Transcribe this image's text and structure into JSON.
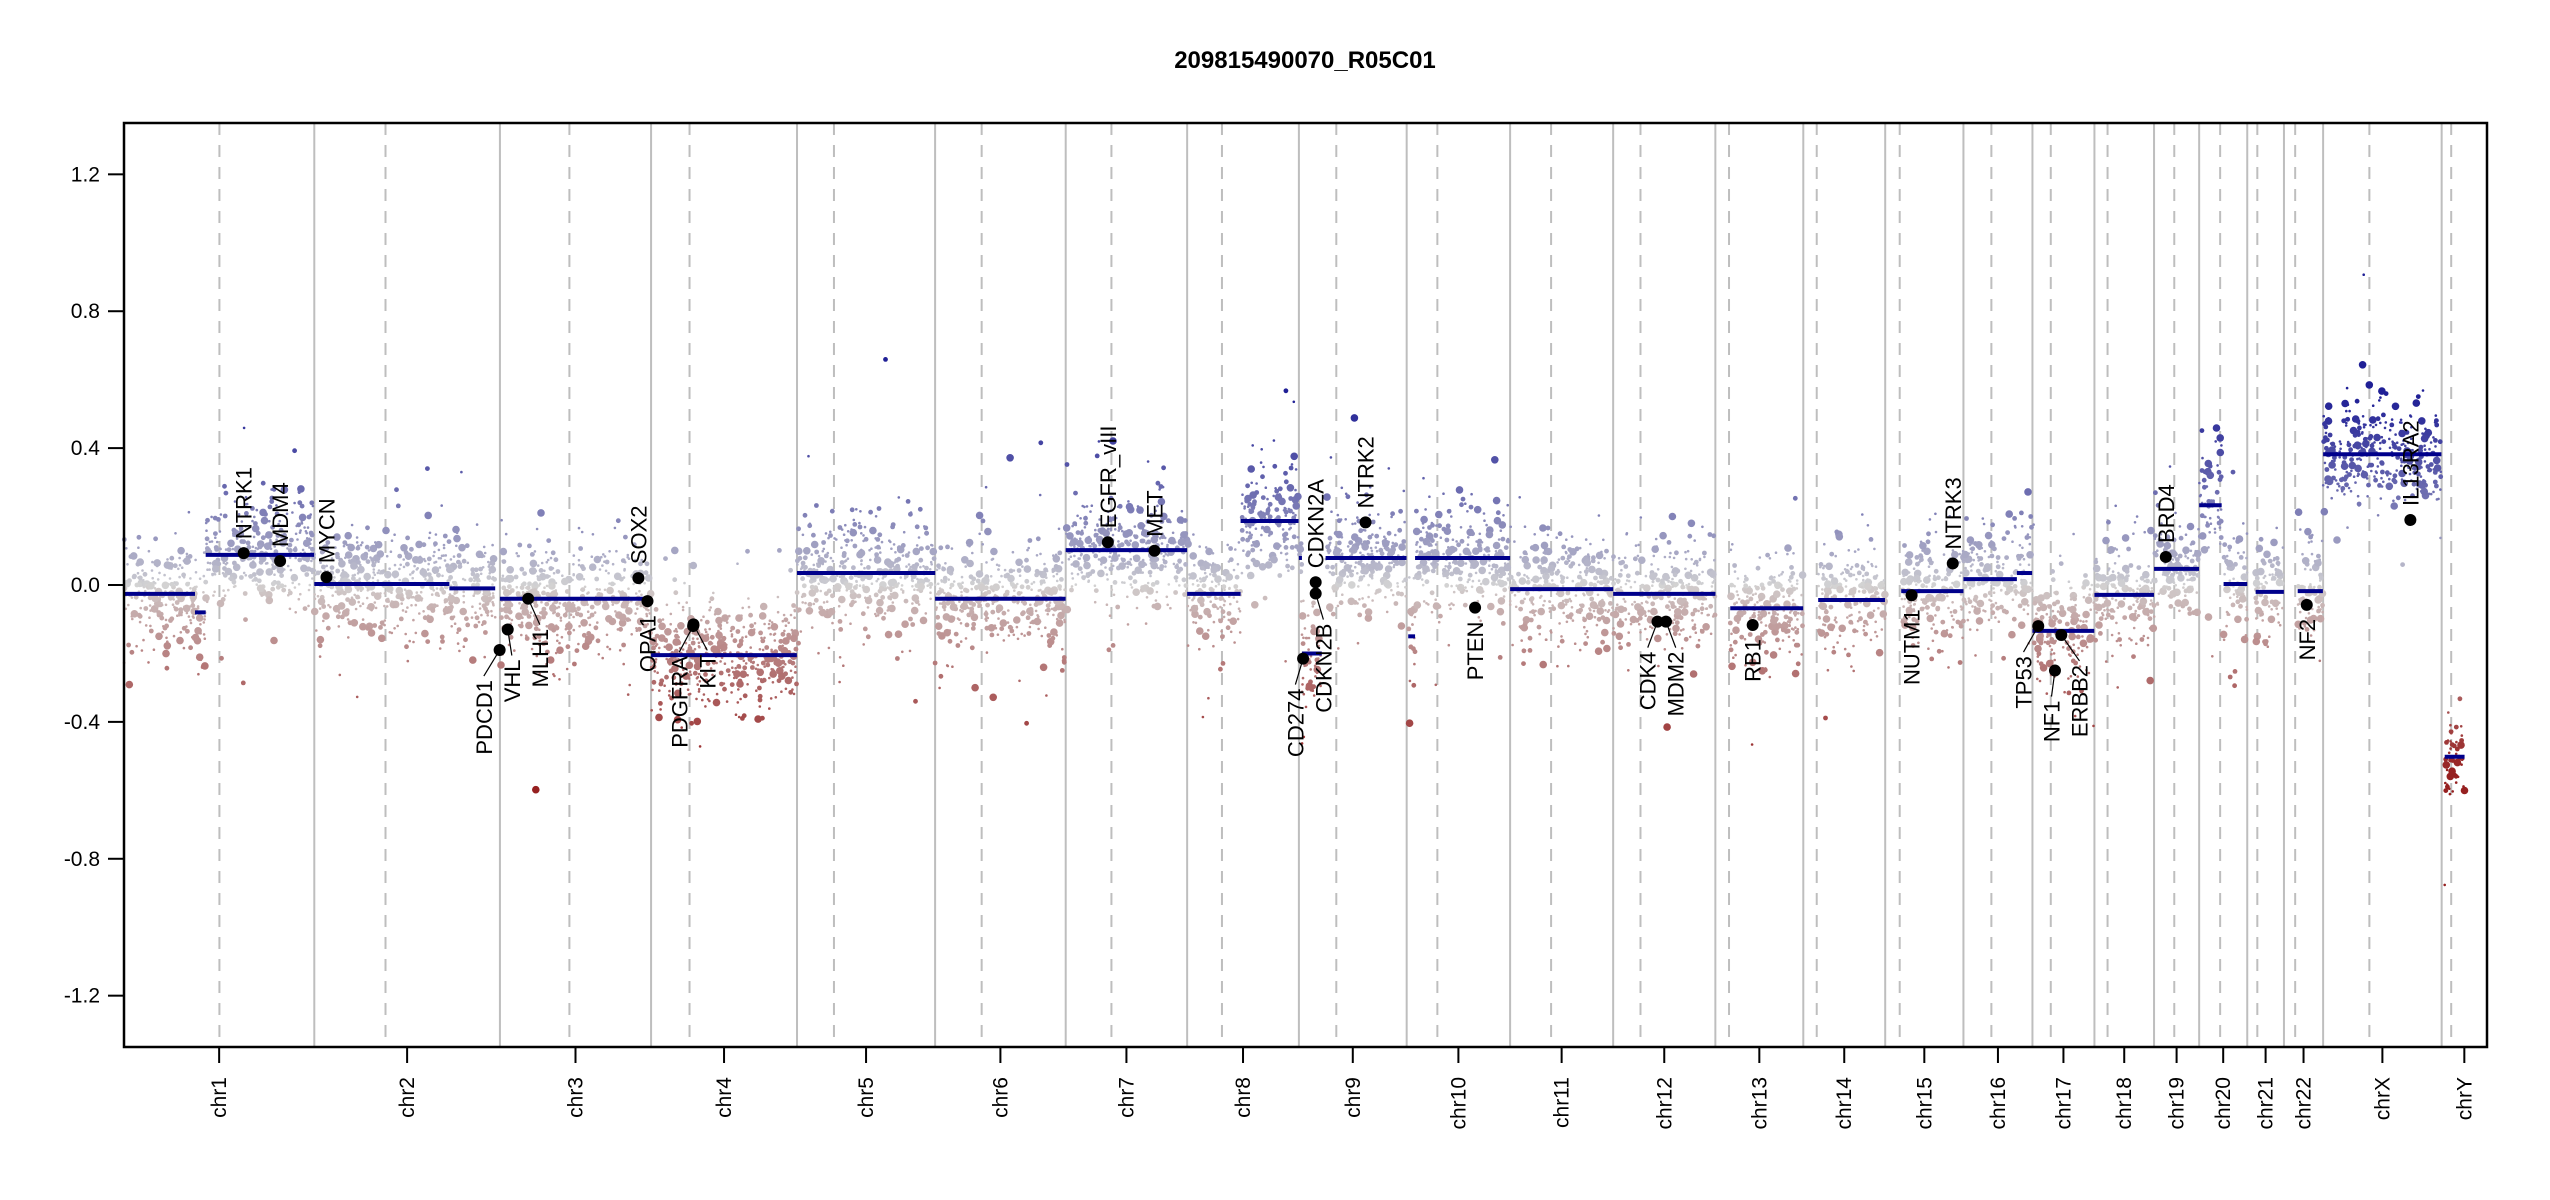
{
  "chart_data": {
    "type": "scatter",
    "title": "209815490070_R05C01",
    "xlabel": "",
    "ylabel": "",
    "ylim": [
      -1.35,
      1.35
    ],
    "yticks": [
      -1.2,
      -0.8,
      -0.4,
      0.0,
      0.4,
      0.8,
      1.2
    ],
    "ytick_labels": [
      "-1.2",
      "-0.8",
      "-0.4",
      "0.0",
      "0.4",
      "0.8",
      "1.2"
    ],
    "grid": "chromosome boundaries (solid) and centromeres (dashed)",
    "colors": {
      "gain": "#00008b",
      "neutral": "#d3d3d3",
      "loss": "#8b0000",
      "segment": "#00008b",
      "gene_marker": "#000000",
      "separator": "#bebebe"
    },
    "chromosomes": [
      {
        "name": "chr1",
        "length_mb": 249.3,
        "centromere_mb": 125.0
      },
      {
        "name": "chr2",
        "length_mb": 243.2,
        "centromere_mb": 93.3
      },
      {
        "name": "chr3",
        "length_mb": 198.0,
        "centromere_mb": 91.0
      },
      {
        "name": "chr4",
        "length_mb": 191.2,
        "centromere_mb": 50.4
      },
      {
        "name": "chr5",
        "length_mb": 180.9,
        "centromere_mb": 48.4
      },
      {
        "name": "chr6",
        "length_mb": 171.1,
        "centromere_mb": 61.0
      },
      {
        "name": "chr7",
        "length_mb": 159.1,
        "centromere_mb": 59.9
      },
      {
        "name": "chr8",
        "length_mb": 146.4,
        "centromere_mb": 45.6
      },
      {
        "name": "chr9",
        "length_mb": 141.2,
        "centromere_mb": 49.0
      },
      {
        "name": "chr10",
        "length_mb": 135.5,
        "centromere_mb": 40.2
      },
      {
        "name": "chr11",
        "length_mb": 135.0,
        "centromere_mb": 53.7
      },
      {
        "name": "chr12",
        "length_mb": 133.9,
        "centromere_mb": 35.8
      },
      {
        "name": "chr13",
        "length_mb": 115.2,
        "centromere_mb": 17.9
      },
      {
        "name": "chr14",
        "length_mb": 107.3,
        "centromere_mb": 17.6
      },
      {
        "name": "chr15",
        "length_mb": 102.5,
        "centromere_mb": 19.0
      },
      {
        "name": "chr16",
        "length_mb": 90.4,
        "centromere_mb": 36.6
      },
      {
        "name": "chr17",
        "length_mb": 81.2,
        "centromere_mb": 24.0
      },
      {
        "name": "chr18",
        "length_mb": 78.1,
        "centromere_mb": 17.2
      },
      {
        "name": "chr19",
        "length_mb": 59.1,
        "centromere_mb": 26.5
      },
      {
        "name": "chr20",
        "length_mb": 63.0,
        "centromere_mb": 27.5
      },
      {
        "name": "chr21",
        "length_mb": 48.1,
        "centromere_mb": 13.2
      },
      {
        "name": "chr22",
        "length_mb": 51.3,
        "centromere_mb": 14.7
      },
      {
        "name": "chrX",
        "length_mb": 155.3,
        "centromere_mb": 60.6
      },
      {
        "name": "chrY",
        "length_mb": 59.4,
        "centromere_mb": 12.5
      }
    ],
    "segments": [
      {
        "chr": "chr1",
        "start": 0,
        "end": 93,
        "value": -0.026
      },
      {
        "chr": "chr1",
        "start": 93,
        "end": 107,
        "value": -0.08
      },
      {
        "chr": "chr1",
        "start": 107,
        "end": 249,
        "value": 0.088
      },
      {
        "chr": "chr2",
        "start": 0,
        "end": 177,
        "value": 0.003
      },
      {
        "chr": "chr2",
        "start": 177,
        "end": 237,
        "value": -0.01
      },
      {
        "chr": "chr3",
        "start": 0,
        "end": 198,
        "value": -0.04
      },
      {
        "chr": "chr4",
        "start": 0,
        "end": 191,
        "value": -0.205
      },
      {
        "chr": "chr5",
        "start": 0,
        "end": 181,
        "value": 0.035
      },
      {
        "chr": "chr6",
        "start": 0,
        "end": 171,
        "value": -0.04
      },
      {
        "chr": "chr7",
        "start": 0,
        "end": 159,
        "value": 0.102
      },
      {
        "chr": "chr8",
        "start": 0,
        "end": 70,
        "value": -0.026
      },
      {
        "chr": "chr8",
        "start": 70,
        "end": 146,
        "value": 0.187
      },
      {
        "chr": "chr9",
        "start": 0,
        "end": 4,
        "value": 0.079
      },
      {
        "chr": "chr9",
        "start": 4,
        "end": 30,
        "value": -0.2
      },
      {
        "chr": "chr9",
        "start": 35,
        "end": 141,
        "value": 0.079
      },
      {
        "chr": "chr10",
        "start": 2,
        "end": 11,
        "value": -0.15
      },
      {
        "chr": "chr10",
        "start": 11,
        "end": 135.5,
        "value": 0.079
      },
      {
        "chr": "chr11",
        "start": 0,
        "end": 135,
        "value": -0.012
      },
      {
        "chr": "chr12",
        "start": 0,
        "end": 134,
        "value": -0.026
      },
      {
        "chr": "chr13",
        "start": 19.5,
        "end": 115,
        "value": -0.068
      },
      {
        "chr": "chr14",
        "start": 19.5,
        "end": 107,
        "value": -0.044
      },
      {
        "chr": "chr15",
        "start": 21,
        "end": 102.5,
        "value": -0.018
      },
      {
        "chr": "chr16",
        "start": 0,
        "end": 70,
        "value": 0.017
      },
      {
        "chr": "chr16",
        "start": 70,
        "end": 90,
        "value": 0.035
      },
      {
        "chr": "chr17",
        "start": 0,
        "end": 81,
        "value": -0.134
      },
      {
        "chr": "chr18",
        "start": 0,
        "end": 78,
        "value": -0.029
      },
      {
        "chr": "chr19",
        "start": 0,
        "end": 59,
        "value": 0.047
      },
      {
        "chr": "chr20",
        "start": 0,
        "end": 29.5,
        "value": 0.233
      },
      {
        "chr": "chr20",
        "start": 32,
        "end": 63,
        "value": 0.003
      },
      {
        "chr": "chr21",
        "start": 11,
        "end": 48,
        "value": -0.02
      },
      {
        "chr": "chr22",
        "start": 18,
        "end": 51,
        "value": -0.018
      },
      {
        "chr": "chrX",
        "start": 0,
        "end": 155,
        "value": 0.382
      },
      {
        "chr": "chrY",
        "start": 4,
        "end": 30,
        "value": -0.502
      }
    ],
    "genes": [
      {
        "name": "NTRK1",
        "chr": "chr1",
        "pos": 156.8,
        "value": 0.093
      },
      {
        "name": "MDM4",
        "chr": "chr1",
        "pos": 204.5,
        "value": 0.07
      },
      {
        "name": "MYCN",
        "chr": "chr2",
        "pos": 16.0,
        "value": 0.023
      },
      {
        "name": "PDCD1",
        "chr": "chr2",
        "pos": 242.8,
        "value": -0.19
      },
      {
        "name": "VHL",
        "chr": "chr3",
        "pos": 10.2,
        "value": -0.13
      },
      {
        "name": "MLH1",
        "chr": "chr3",
        "pos": 37.0,
        "value": -0.04
      },
      {
        "name": "SOX2",
        "chr": "chr3",
        "pos": 181.4,
        "value": 0.02
      },
      {
        "name": "OPA1",
        "chr": "chr3",
        "pos": 193.3,
        "value": -0.047
      },
      {
        "name": "PDGFRA",
        "chr": "chr4",
        "pos": 55.1,
        "value": -0.12
      },
      {
        "name": "KIT",
        "chr": "chr4",
        "pos": 55.5,
        "value": -0.115
      },
      {
        "name": "EGFR_vIII",
        "chr": "chr7",
        "pos": 55.2,
        "value": 0.125
      },
      {
        "name": "MET",
        "chr": "chr7",
        "pos": 116.3,
        "value": 0.1
      },
      {
        "name": "CD274",
        "chr": "chr9",
        "pos": 5.5,
        "value": -0.215
      },
      {
        "name": "CDKN2A",
        "chr": "chr9",
        "pos": 21.97,
        "value": 0.008
      },
      {
        "name": "CDKN2B",
        "chr": "chr9",
        "pos": 22.0,
        "value": -0.025
      },
      {
        "name": "NTRK2",
        "chr": "chr9",
        "pos": 87.3,
        "value": 0.183
      },
      {
        "name": "PTEN",
        "chr": "chr10",
        "pos": 89.6,
        "value": -0.066
      },
      {
        "name": "CDK4",
        "chr": "chr12",
        "pos": 58.1,
        "value": -0.107
      },
      {
        "name": "MDM2",
        "chr": "chr12",
        "pos": 69.2,
        "value": -0.107
      },
      {
        "name": "RB1",
        "chr": "chr13",
        "pos": 48.9,
        "value": -0.117
      },
      {
        "name": "NUTM1",
        "chr": "chr15",
        "pos": 34.6,
        "value": -0.03
      },
      {
        "name": "NTRK3",
        "chr": "chr15",
        "pos": 88.5,
        "value": 0.063
      },
      {
        "name": "TP53",
        "chr": "chr17",
        "pos": 7.6,
        "value": -0.12
      },
      {
        "name": "NF1",
        "chr": "chr17",
        "pos": 29.5,
        "value": -0.25
      },
      {
        "name": "ERBB2",
        "chr": "chr17",
        "pos": 37.8,
        "value": -0.146
      },
      {
        "name": "BRD4",
        "chr": "chr19",
        "pos": 15.4,
        "value": 0.082
      },
      {
        "name": "NF2",
        "chr": "chr22",
        "pos": 29.9,
        "value": -0.058
      },
      {
        "name": "IL13RA2",
        "chr": "chrX",
        "pos": 114.3,
        "value": 0.19
      }
    ]
  }
}
